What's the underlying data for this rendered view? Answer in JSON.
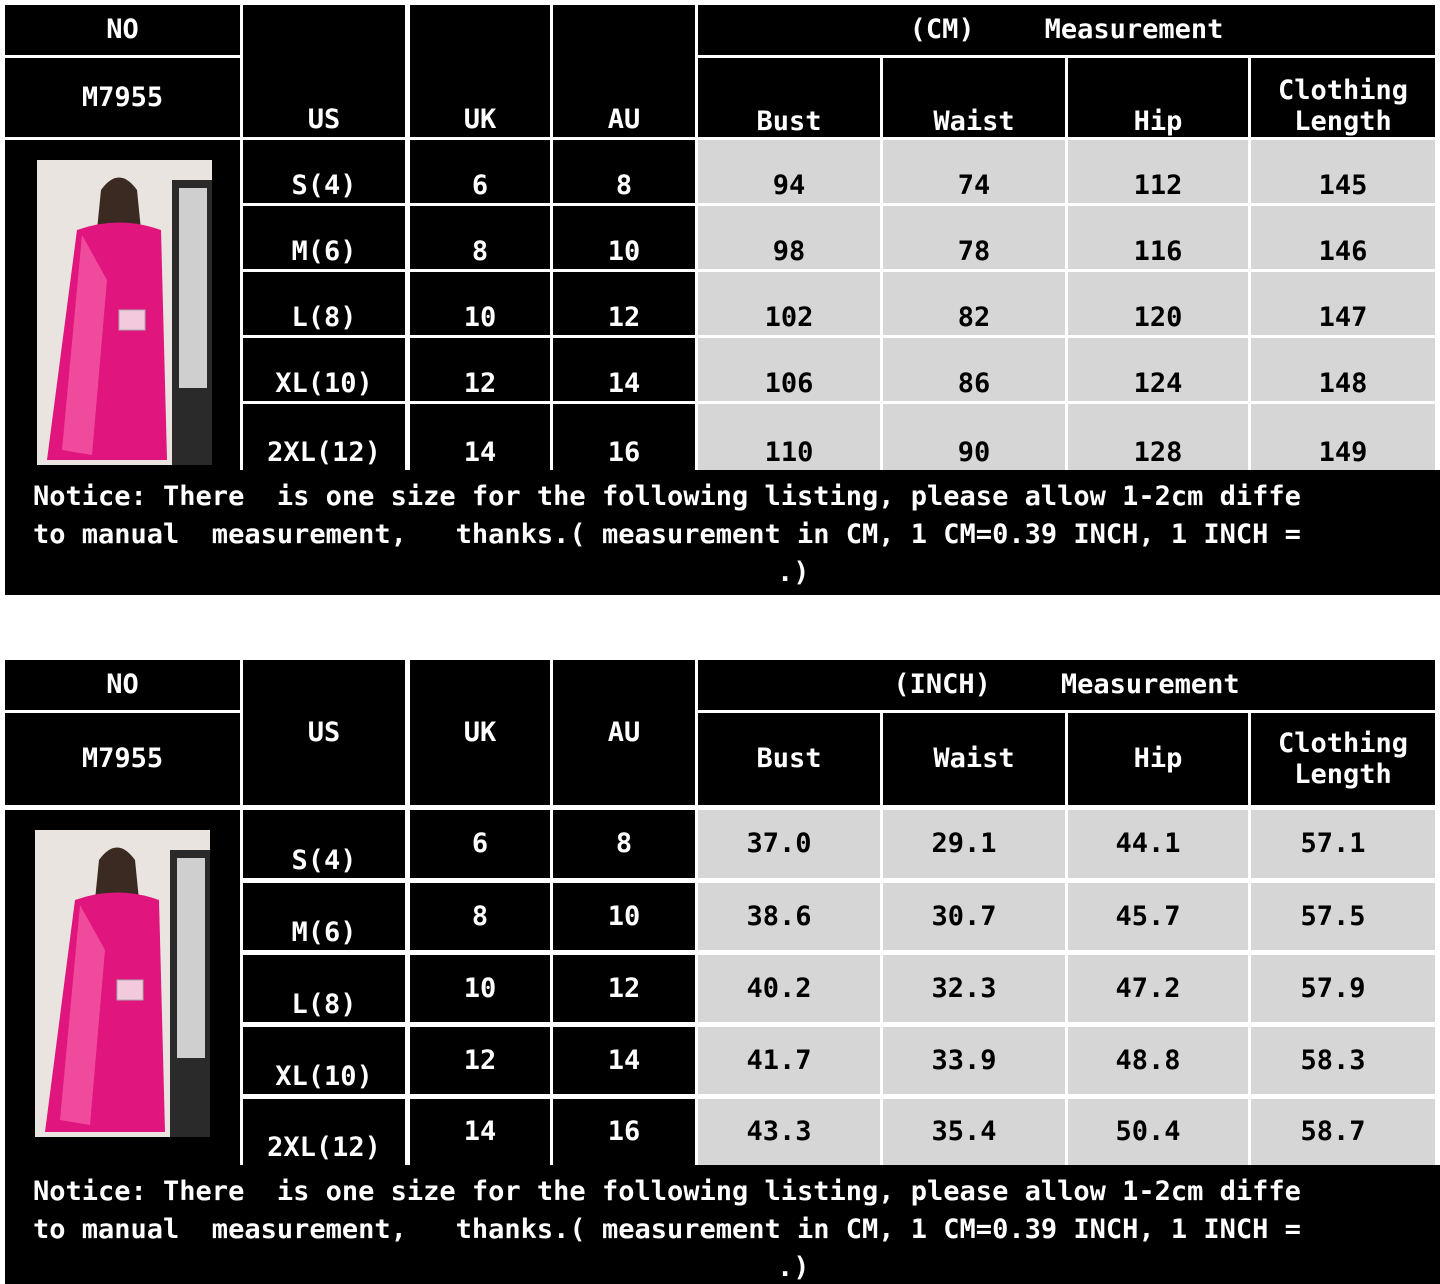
{
  "tables": [
    {
      "no_label": "NO",
      "model": "M7955",
      "unit": "(CM)",
      "measurement": "Measurement",
      "columns": [
        "US",
        "UK",
        "AU",
        "Bust",
        "Waist",
        "Hip",
        "Clothing Length"
      ],
      "rows": [
        [
          "S(4)",
          "6",
          "8",
          "94",
          "74",
          "112",
          "145"
        ],
        [
          "M(6)",
          "8",
          "10",
          "98",
          "78",
          "116",
          "146"
        ],
        [
          "L(8)",
          "10",
          "12",
          "102",
          "82",
          "120",
          "147"
        ],
        [
          "XL(10)",
          "12",
          "14",
          "106",
          "86",
          "124",
          "148"
        ],
        [
          "2XL(12)",
          "14",
          "16",
          "110",
          "90",
          "128",
          "149"
        ]
      ],
      "notice": [
        "Notice: There  is one size for the following listing, please allow 1-2cm diffe",
        "to manual  measurement,   thanks.( measurement in CM, 1 CM=0.39 INCH, 1 INCH =",
        ".)"
      ]
    },
    {
      "no_label": "NO",
      "model": "M7955",
      "unit": "(INCH)",
      "measurement": "Measurement",
      "columns": [
        "US",
        "UK",
        "AU",
        "Bust",
        "Waist",
        "Hip",
        "Clothing Length"
      ],
      "rows": [
        [
          "S(4)",
          "6",
          "8",
          "37.0",
          "29.1",
          "44.1",
          "57.1"
        ],
        [
          "M(6)",
          "8",
          "10",
          "38.6",
          "30.7",
          "45.7",
          "57.5"
        ],
        [
          "L(8)",
          "10",
          "12",
          "40.2",
          "32.3",
          "47.2",
          "57.9"
        ],
        [
          "XL(10)",
          "12",
          "14",
          "41.7",
          "33.9",
          "48.8",
          "58.3"
        ],
        [
          "2XL(12)",
          "14",
          "16",
          "43.3",
          "35.4",
          "50.4",
          "58.7"
        ]
      ],
      "notice": [
        "Notice: There  is one size for the following listing, please allow 1-2cm diffe",
        "to manual  measurement,   thanks.( measurement in CM, 1 CM=0.39 INCH, 1 INCH =",
        ".)"
      ]
    }
  ]
}
